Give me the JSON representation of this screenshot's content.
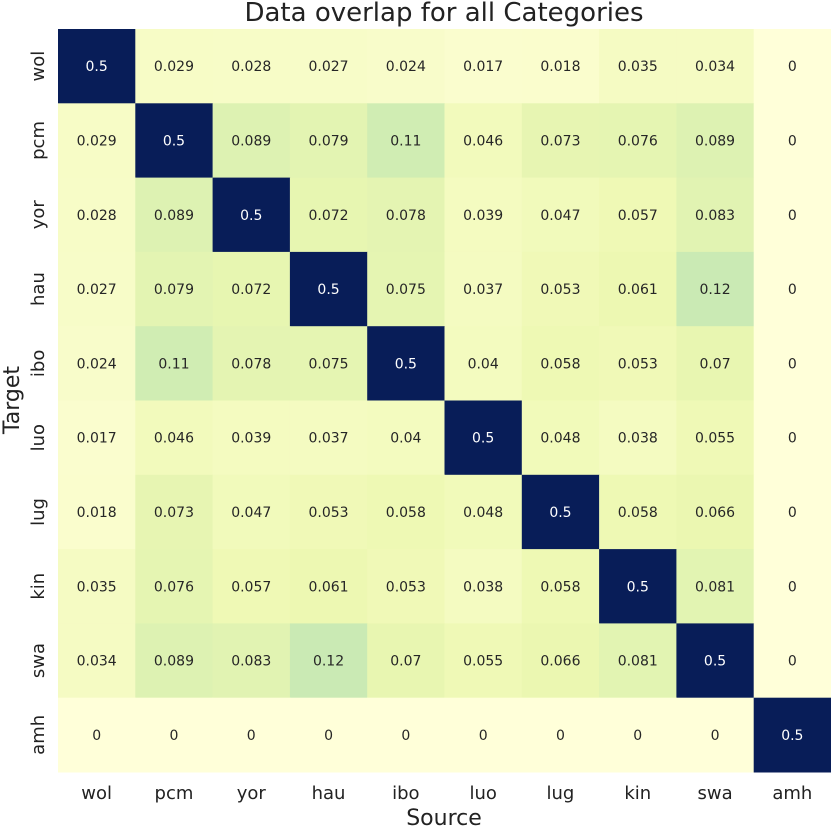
{
  "chart_data": {
    "type": "heatmap",
    "title": "Data overlap for all Categories",
    "xlabel": "Source",
    "ylabel": "Target",
    "x_categories": [
      "wol",
      "pcm",
      "yor",
      "hau",
      "ibo",
      "luo",
      "lug",
      "kin",
      "swa",
      "amh"
    ],
    "y_categories": [
      "wol",
      "pcm",
      "yor",
      "hau",
      "ibo",
      "luo",
      "lug",
      "kin",
      "swa",
      "amh"
    ],
    "values": [
      [
        0.5,
        0.029,
        0.028,
        0.027,
        0.024,
        0.017,
        0.018,
        0.035,
        0.034,
        0
      ],
      [
        0.029,
        0.5,
        0.089,
        0.079,
        0.11,
        0.046,
        0.073,
        0.076,
        0.089,
        0
      ],
      [
        0.028,
        0.089,
        0.5,
        0.072,
        0.078,
        0.039,
        0.047,
        0.057,
        0.083,
        0
      ],
      [
        0.027,
        0.079,
        0.072,
        0.5,
        0.075,
        0.037,
        0.053,
        0.061,
        0.12,
        0
      ],
      [
        0.024,
        0.11,
        0.078,
        0.075,
        0.5,
        0.04,
        0.058,
        0.053,
        0.07,
        0
      ],
      [
        0.017,
        0.046,
        0.039,
        0.037,
        0.04,
        0.5,
        0.048,
        0.038,
        0.055,
        0
      ],
      [
        0.018,
        0.073,
        0.047,
        0.053,
        0.058,
        0.048,
        0.5,
        0.058,
        0.066,
        0
      ],
      [
        0.035,
        0.076,
        0.057,
        0.061,
        0.053,
        0.038,
        0.058,
        0.5,
        0.081,
        0
      ],
      [
        0.034,
        0.089,
        0.083,
        0.12,
        0.07,
        0.055,
        0.066,
        0.081,
        0.5,
        0
      ],
      [
        0,
        0,
        0,
        0,
        0,
        0,
        0,
        0,
        0,
        0.5
      ]
    ],
    "colormap": "YlGnBu",
    "color_range": [
      0,
      0.5
    ],
    "colorbar": false,
    "grid": false
  }
}
